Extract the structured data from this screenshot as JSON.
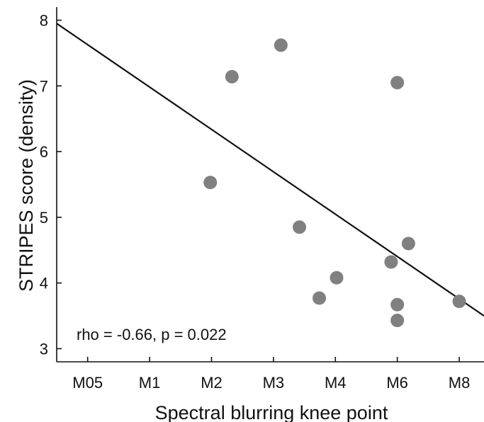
{
  "chart_data": {
    "type": "scatter",
    "title": "",
    "xlabel": "Spectral blurring knee point",
    "ylabel": "STRIPES score (density)",
    "x_categories": [
      "M05",
      "M1",
      "M2",
      "M3",
      "M4",
      "M6",
      "M8"
    ],
    "xlim": [
      -0.5,
      6.4
    ],
    "ylim": [
      2.8,
      8.2
    ],
    "yticks": [
      3,
      4,
      5,
      6,
      7,
      8
    ],
    "grid": false,
    "points": [
      {
        "x": 1.98,
        "y": 5.53
      },
      {
        "x": 2.33,
        "y": 7.14
      },
      {
        "x": 3.12,
        "y": 7.62
      },
      {
        "x": 3.42,
        "y": 4.85
      },
      {
        "x": 3.74,
        "y": 3.77
      },
      {
        "x": 4.02,
        "y": 4.08
      },
      {
        "x": 4.9,
        "y": 4.32
      },
      {
        "x": 5.0,
        "y": 7.05
      },
      {
        "x": 5.0,
        "y": 3.67
      },
      {
        "x": 5.0,
        "y": 3.43
      },
      {
        "x": 5.18,
        "y": 4.6
      },
      {
        "x": 6.0,
        "y": 3.72
      }
    ],
    "fit_line": {
      "x": [
        -0.5,
        6.4
      ],
      "y": [
        7.95,
        3.5
      ]
    },
    "annotation": "rho = -0.66, p = 0.022",
    "colors": {
      "points": "#808080",
      "line": "#111111",
      "axis": "#111111"
    }
  }
}
